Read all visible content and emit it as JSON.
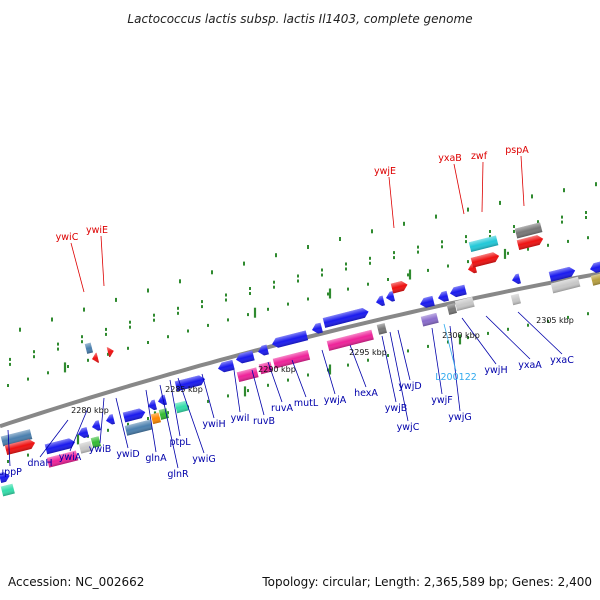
{
  "title": "Lactococcus lactis subsp. lactis Il1403, complete genome",
  "footer": {
    "accession": "Accession: NC_002662",
    "summary": "Topology: circular; Length: 2,365,589 bp; Genes: 2,400"
  },
  "colors": {
    "backbone": "#888888",
    "tick": "#2f8a2f",
    "label_normal": "#0000aa",
    "label_highlight": "#dd0000",
    "label_rna": "#33aaee",
    "blue": "#1a1aee",
    "red": "#ee1111",
    "magenta": "#ee2299",
    "steel": "#4a7fae",
    "cyan": "#22c8d8",
    "gray": "#c8c8c8",
    "dark_gray": "#777777",
    "green": "#33bb33",
    "orange": "#ff8800",
    "mint": "#33ddaa",
    "purple": "#8a6ccc",
    "olive": "#b8a040"
  },
  "kbp_marks": [
    {
      "label": "2280 kbp"
    },
    {
      "label": "2285 kbp"
    },
    {
      "label": "2290 kbp"
    },
    {
      "label": "2295 kbp"
    },
    {
      "label": "2300 kbp"
    },
    {
      "label": "2305 kbp"
    }
  ],
  "gene_labels_below": [
    {
      "text": "uppP",
      "color": "#0000aa"
    },
    {
      "text": "dnaH",
      "color": "#0000aa"
    },
    {
      "text": "ywiA",
      "color": "#0000aa"
    },
    {
      "text": "ywiB",
      "color": "#0000aa"
    },
    {
      "text": "ywiD",
      "color": "#0000aa"
    },
    {
      "text": "glnA",
      "color": "#0000aa"
    },
    {
      "text": "glnR",
      "color": "#0000aa"
    },
    {
      "text": "ptpL",
      "color": "#0000aa"
    },
    {
      "text": "ywiG",
      "color": "#0000aa"
    },
    {
      "text": "ywiH",
      "color": "#0000aa"
    },
    {
      "text": "ywiI",
      "color": "#0000aa"
    },
    {
      "text": "ruvB",
      "color": "#0000aa"
    },
    {
      "text": "ruvA",
      "color": "#0000aa"
    },
    {
      "text": "mutL",
      "color": "#0000aa"
    },
    {
      "text": "ywjA",
      "color": "#0000aa"
    },
    {
      "text": "hexA",
      "color": "#0000aa"
    },
    {
      "text": "ywjB",
      "color": "#0000aa"
    },
    {
      "text": "ywjC",
      "color": "#0000aa"
    },
    {
      "text": "ywjD",
      "color": "#0000aa"
    },
    {
      "text": "ywjF",
      "color": "#0000aa"
    },
    {
      "text": "ywjG",
      "color": "#0000aa"
    },
    {
      "text": "L200122",
      "color": "#33aaee"
    },
    {
      "text": "ywjH",
      "color": "#0000aa"
    },
    {
      "text": "yxaA",
      "color": "#0000aa"
    },
    {
      "text": "yxaC",
      "color": "#0000aa"
    }
  ],
  "gene_labels_above": [
    {
      "text": "ywiC",
      "color": "#dd0000"
    },
    {
      "text": "ywiE",
      "color": "#dd0000"
    },
    {
      "text": "ywjE",
      "color": "#dd0000"
    },
    {
      "text": "yxaB",
      "color": "#dd0000"
    },
    {
      "text": "zwf",
      "color": "#dd0000"
    },
    {
      "text": "pspA",
      "color": "#dd0000"
    }
  ]
}
